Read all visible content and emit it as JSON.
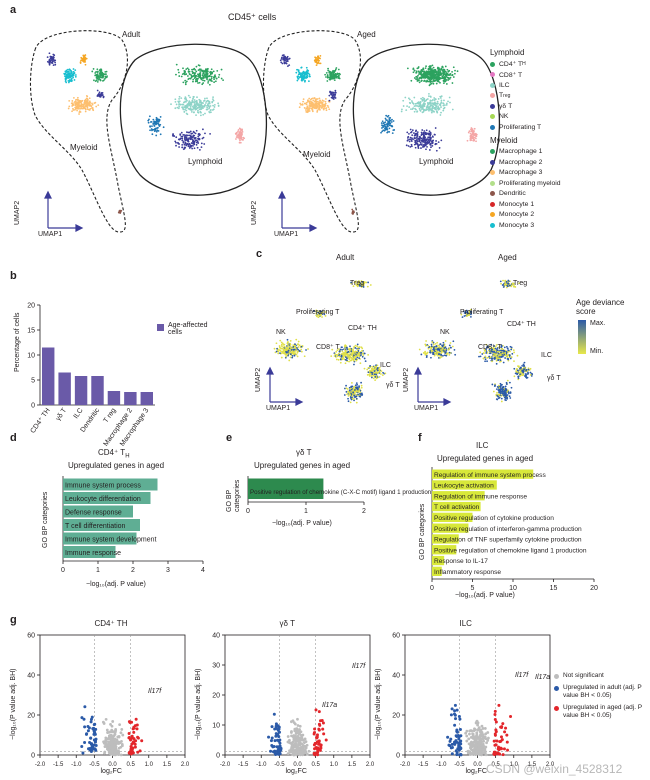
{
  "panel_a": {
    "label": "a",
    "title": "CD45⁺ cells",
    "adult_title": "Adult",
    "aged_title": "Aged",
    "myeloid_label": "Myeloid",
    "lymphoid_label": "Lymphoid",
    "umap1": "UMAP1",
    "umap2": "UMAP2",
    "legend": {
      "lymphoid_header": "Lymphoid",
      "lymphoid": [
        {
          "name": "CD4⁺ T",
          "sub": "H",
          "color": "#2ca25f"
        },
        {
          "name": "CD8⁺ T",
          "sub": "",
          "color": "#e377c2"
        },
        {
          "name": "ILC",
          "sub": "",
          "color": "#8dd3c7"
        },
        {
          "name": "T",
          "sub": "reg",
          "color": "#f4a6a6"
        },
        {
          "name": "γδ T",
          "sub": "",
          "color": "#3b3b98"
        },
        {
          "name": "NK",
          "sub": "",
          "color": "#a6d854"
        },
        {
          "name": "Proliferating T",
          "sub": "",
          "color": "#1f77b4"
        }
      ],
      "myeloid_header": "Myeloid",
      "myeloid": [
        {
          "name": "Macrophage 1",
          "sub": "",
          "color": "#2ca25f"
        },
        {
          "name": "Macrophage 2",
          "sub": "",
          "color": "#3b3b98"
        },
        {
          "name": "Macrophage 3",
          "sub": "",
          "color": "#fdbf6f"
        },
        {
          "name": "Proliferating myeloid",
          "sub": "",
          "color": "#b2df8a"
        },
        {
          "name": "Dendritic",
          "sub": "",
          "color": "#8c564b"
        },
        {
          "name": "Monocyte 1",
          "sub": "",
          "color": "#d62728"
        },
        {
          "name": "Monocyte 2",
          "sub": "",
          "color": "#f5a623"
        },
        {
          "name": "Monocyte 3",
          "sub": "",
          "color": "#17becf"
        }
      ]
    }
  },
  "panel_b": {
    "label": "b",
    "ylabel": "Percentage of cells",
    "legend": "Age-affected cells",
    "bar_color": "#6a5aa8"
  },
  "panel_c": {
    "label": "c",
    "adult_title": "Adult",
    "aged_title": "Aged",
    "umap1": "UMAP1",
    "umap2": "UMAP2",
    "legend_title": "Age deviance score",
    "legend_max": "Max.",
    "legend_min": "Min.",
    "labels": [
      "Treg",
      "Proliferating T",
      "NK",
      "CD4⁺ TH",
      "CD8⁺ T",
      "ILC",
      "γδ T"
    ]
  },
  "panel_d": {
    "label": "d",
    "title": "CD4⁺ T",
    "title_sub": "H",
    "subtitle": "Upregulated genes in aged",
    "ylabel": "GO BP categories",
    "xlabel": "−log₁₀(adj. P value)"
  },
  "panel_e": {
    "label": "e",
    "title": "γδ T",
    "subtitle": "Upregulated genes in aged",
    "ylabel": "GO BP categories",
    "xlabel": "−log₁₀(adj. P value)"
  },
  "panel_f": {
    "label": "f",
    "title": "ILC",
    "subtitle": "Upregulated genes in aged",
    "ylabel": "GO BP categories",
    "xlabel": "−log₁₀(adj. P value)"
  },
  "panel_g": {
    "label": "g",
    "titles": [
      "CD4⁺ TH",
      "γδ T",
      "ILC"
    ],
    "ylabel": "−log₁₀(P value adj. BH)",
    "xlabel": "log₂FC",
    "legend": [
      {
        "name": "Not significant",
        "color": "#bdbdbd"
      },
      {
        "name": "Upregulated in adult (adj. P value BH < 0.05)",
        "color": "#2b5aa8"
      },
      {
        "name": "Upregulated in aged (adj. P value BH < 0.05)",
        "color": "#e3262b"
      }
    ],
    "gene_labels": [
      "Il17f",
      "Il17f",
      "Il17a",
      "Il17f",
      "Il17a"
    ]
  },
  "watermark": "CSDN @weixin_4528312",
  "chart_data": [
    {
      "type": "bar",
      "panel": "b",
      "categories": [
        "CD4⁺ TH",
        "γδ T",
        "ILC",
        "Dendritic",
        "T reg",
        "Macrophage 2",
        "Macrophage 3"
      ],
      "values": [
        11.5,
        6.5,
        5.8,
        5.8,
        2.8,
        2.6,
        2.6
      ],
      "ylabel": "Percentage of cells",
      "ylim": [
        0,
        20
      ],
      "yticks": [
        0,
        5,
        10,
        15,
        20
      ]
    },
    {
      "type": "bar",
      "panel": "d",
      "orientation": "horizontal",
      "categories": [
        "Immune system process",
        "Leukocyte differentiation",
        "Defense response",
        "T cell differentiation",
        "Immune system development",
        "Immune response"
      ],
      "values": [
        2.7,
        2.5,
        2.0,
        2.2,
        2.1,
        1.5
      ],
      "xlim": [
        0,
        4
      ],
      "xticks": [
        0,
        1,
        2,
        3,
        4
      ],
      "color": "#5fae94"
    },
    {
      "type": "bar",
      "panel": "e",
      "orientation": "horizontal",
      "categories": [
        "Positive regulation of chemokine (C-X-C motif) ligand 1 production"
      ],
      "values": [
        1.3
      ],
      "xlim": [
        0,
        2
      ],
      "xticks": [
        0,
        1,
        2
      ],
      "color": "#2d8a4e"
    },
    {
      "type": "bar",
      "panel": "f",
      "orientation": "horizontal",
      "categories": [
        "Regulation of immune system process",
        "Leukocyte activation",
        "Regulation of immune response",
        "T cell activation",
        "Positive regulation of cytokine production",
        "Positive regulation of interferon-gamma production",
        "Regulation of TNF superfamily cytokine production",
        "Positive regulation of chemokine ligand 1 production",
        "Response to IL-17",
        "Inflammatory response"
      ],
      "values": [
        12.5,
        8.0,
        6.5,
        6.0,
        5.0,
        4.5,
        3.3,
        3.0,
        1.5,
        1.2
      ],
      "xlim": [
        0,
        20
      ],
      "xticks": [
        0,
        5,
        10,
        15,
        20
      ],
      "color": "#d8e83a"
    }
  ]
}
